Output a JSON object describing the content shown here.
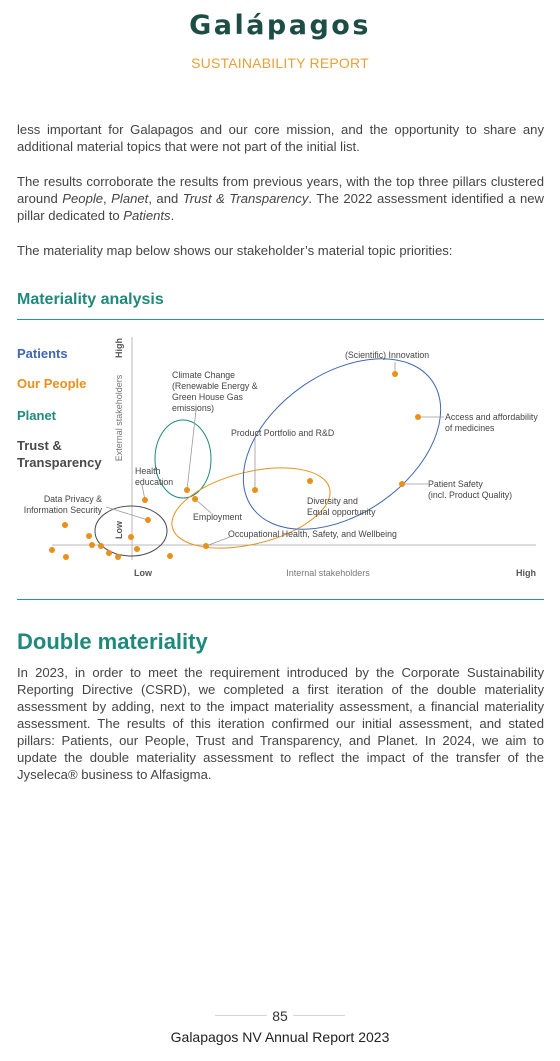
{
  "header": {
    "logo_text": "Galápagos",
    "subtitle": "SUSTAINABILITY REPORT"
  },
  "intro": {
    "p1": "less important for Galapagos and our core mission, and the opportunity to share any additional material topics that were not part of the initial list.",
    "p2_a": "The results corroborate the results from previous years, with the top three pillars clustered around ",
    "p2_people": "People",
    "p2_b": ", ",
    "p2_planet": "Planet",
    "p2_c": ", and ",
    "p2_trust": "Trust & Transparency",
    "p2_d": ". The 2022 assessment identified a new pillar dedicated to ",
    "p2_patients": "Patients",
    "p2_e": ".",
    "p3": "The materiality map below shows our stakeholder’s material topic priorities:"
  },
  "materiality": {
    "title": "Materiality analysis",
    "legend": [
      {
        "label": "Patients",
        "color": "#3f67b1"
      },
      {
        "label": "Our People",
        "color": "#e8901a"
      },
      {
        "label": "Planet",
        "color": "#1f8a7c"
      },
      {
        "label": "Trust & Transparency",
        "color": "#4a4a4a"
      }
    ],
    "chart": {
      "y_axis_label": "External stakeholders",
      "x_axis_label": "Internal stakeholders",
      "low": "Low",
      "high": "High",
      "topics": {
        "innovation": "(Scientific) Innovation",
        "climate_1": "Climate Change",
        "climate_2": "(Renewable Energy &",
        "climate_3": "Green House Gas",
        "climate_4": "emissions)",
        "access_1": "Access and affordability",
        "access_2": "of medicines",
        "portfolio": "Product Portfolio and R&D",
        "patient_safety_1": "Patient Safety",
        "patient_safety_2": "(incl. Product Quality)",
        "health_1": "Health",
        "health_2": "education",
        "diversity_1": "Diversity and",
        "diversity_2": "Equal opportunity",
        "privacy_1": "Data Privacy &",
        "privacy_2": "Information Security",
        "employment": "Employment",
        "ohs": "Occupational Health, Safety, and Wellbeing"
      }
    }
  },
  "double": {
    "title": "Double materiality",
    "paragraph": "In 2023, in order to meet the requirement introduced by the Corporate Sustainability Reporting Directive (CSRD), we completed a first iteration of the double materiality assessment by adding, next to the impact materiality assessment, a financial materiality assessment. The results of this iteration confirmed our initial assessment, and stated pillars: Patients, our People, Trust and Transparency, and Planet. In 2024, we aim to update the double materiality assessment to reflect the impact of the transfer of the Jyseleca® business to Alfasigma."
  },
  "footer": {
    "page_number": "85",
    "report_title": "Galapagos NV Annual Report 2023"
  },
  "colors": {
    "teal": "#1f8a7c",
    "orange": "#e8901a",
    "blue": "#3f67b1",
    "report_tag": "#e8a13a",
    "logo": "#1d4d45"
  }
}
